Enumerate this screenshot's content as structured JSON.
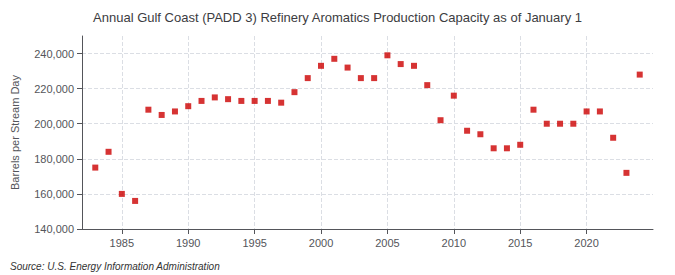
{
  "chart_data": {
    "type": "scatter",
    "title": "Annual Gulf Coast (PADD 3) Refinery Aromatics Production Capacity as of January 1",
    "ylabel": "Barrels per Stream Day",
    "annotations": [
      "Source: U.S. Energy Information Administration"
    ],
    "color": "#cc0000",
    "marker": "square",
    "grid": true,
    "xlim": [
      1982,
      2025
    ],
    "ylim": [
      140000,
      250000
    ],
    "xticks": [
      1985,
      1990,
      1995,
      2000,
      2005,
      2010,
      2015,
      2020
    ],
    "yticks": [
      {
        "value": 140000,
        "label": "140,000"
      },
      {
        "value": 160000,
        "label": "160,000"
      },
      {
        "value": 180000,
        "label": "180,000"
      },
      {
        "value": 200000,
        "label": "200,000"
      },
      {
        "value": 220000,
        "label": "220,000"
      },
      {
        "value": 240000,
        "label": "240,000"
      }
    ],
    "x": [
      1983,
      1984,
      1985,
      1986,
      1987,
      1988,
      1989,
      1990,
      1991,
      1992,
      1993,
      1994,
      1995,
      1996,
      1997,
      1998,
      1999,
      2000,
      2001,
      2002,
      2003,
      2004,
      2005,
      2006,
      2007,
      2008,
      2009,
      2010,
      2011,
      2012,
      2013,
      2014,
      2015,
      2016,
      2017,
      2018,
      2019,
      2020,
      2021,
      2022,
      2023,
      2024
    ],
    "values": [
      175000,
      184000,
      160000,
      156000,
      208000,
      205000,
      207000,
      210000,
      213000,
      215000,
      214000,
      213000,
      213000,
      213000,
      212000,
      218000,
      226000,
      233000,
      237000,
      232000,
      226000,
      226000,
      239000,
      234000,
      233000,
      222000,
      202000,
      216000,
      196000,
      194000,
      186000,
      186000,
      188000,
      208000,
      200000,
      200000,
      200000,
      207000,
      207000,
      192000,
      172000,
      228000
    ]
  }
}
